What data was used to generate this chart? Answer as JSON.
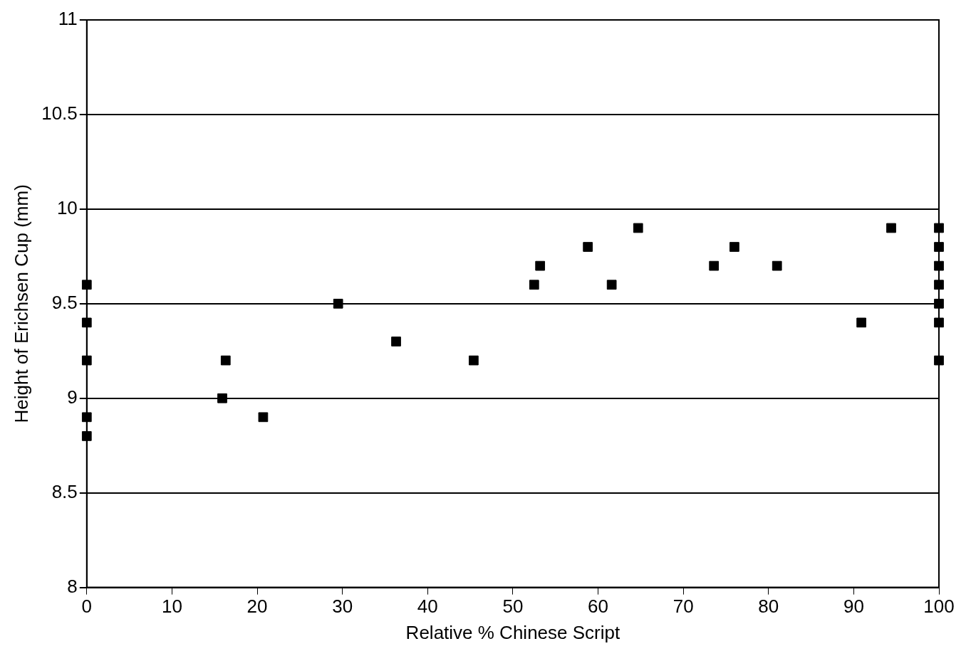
{
  "chart_data": {
    "type": "scatter",
    "xlabel": "Relative % Chinese Script",
    "ylabel": "Height of Erichsen Cup (mm)",
    "x": [
      0,
      0,
      0,
      0,
      0,
      15.9,
      16.3,
      20.7,
      29.5,
      36.3,
      45.4,
      52.5,
      53.2,
      58.8,
      61.6,
      64.7,
      73.6,
      76,
      81,
      90.9,
      94.4,
      100,
      100,
      100,
      100,
      100,
      100,
      100
    ],
    "series": [
      {
        "color": "#000000",
        "values": [
          8.8,
          8.9,
          9.2,
          9.4,
          9.6,
          9.0,
          9.2,
          8.9,
          9.5,
          9.3,
          9.2,
          9.6,
          9.7,
          9.8,
          9.6,
          9.9,
          9.7,
          9.8,
          9.7,
          9.4,
          9.9,
          9.9,
          9.8,
          9.7,
          9.6,
          9.5,
          9.4,
          9.2
        ]
      }
    ],
    "xlim": [
      0,
      100
    ],
    "xticks": [
      0,
      10,
      20,
      30,
      40,
      50,
      60,
      70,
      80,
      90,
      100
    ],
    "ylim": [
      8,
      11
    ],
    "yticks": [
      8,
      8.5,
      9,
      9.5,
      10,
      10.5,
      11
    ],
    "grid": "y",
    "legend": false,
    "marker": "square"
  }
}
